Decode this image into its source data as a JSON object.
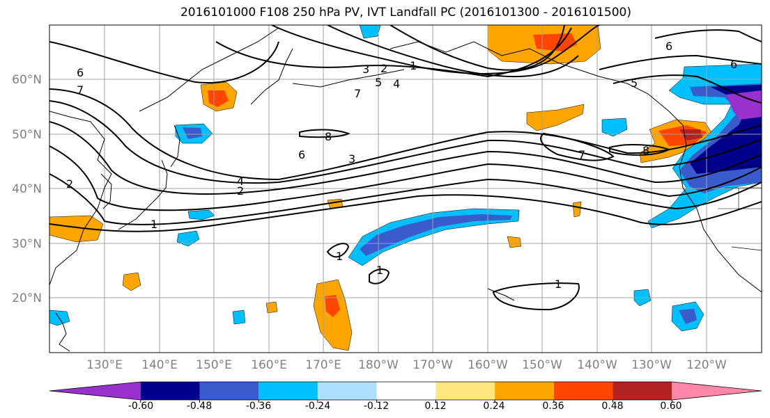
{
  "title": "2016101000 F108 250 hPa PV, IVT Landfall PC (2016101300 - 2016101500)",
  "lat_labels": [
    "60°N",
    "50°N",
    "40°N",
    "30°N",
    "20°N"
  ],
  "lon_labels": [
    "130°E",
    "140°E",
    "150°E",
    "160°E",
    "170°E",
    "180°W",
    "170°W",
    "160°W",
    "150°W",
    "140°W",
    "130°W",
    "120°W"
  ],
  "colorbar": {
    "colors": [
      "#9932cc",
      "#00008b",
      "#3a5bcc",
      "#00bfff",
      "#b0e0ff",
      "#ffffff",
      "#ffe680",
      "#ffa500",
      "#ff4500",
      "#b22222",
      "#ff88aa"
    ],
    "tick_labels": [
      "-0.60",
      "-0.48",
      "-0.36",
      "-0.24",
      "-0.12",
      "0.12",
      "0.24",
      "0.36",
      "0.48",
      "0.60"
    ]
  },
  "contour_labels": [
    "6",
    "7",
    "2",
    "3",
    "2",
    "1",
    "5",
    "4",
    "7",
    "8",
    "6",
    "3",
    "4",
    "2",
    "1",
    "1",
    "1",
    "6",
    "6",
    "5",
    "8",
    "7",
    "1"
  ],
  "colors": {
    "grid": "#a0a0a0",
    "coast": "#000000",
    "contour": "#000000"
  }
}
